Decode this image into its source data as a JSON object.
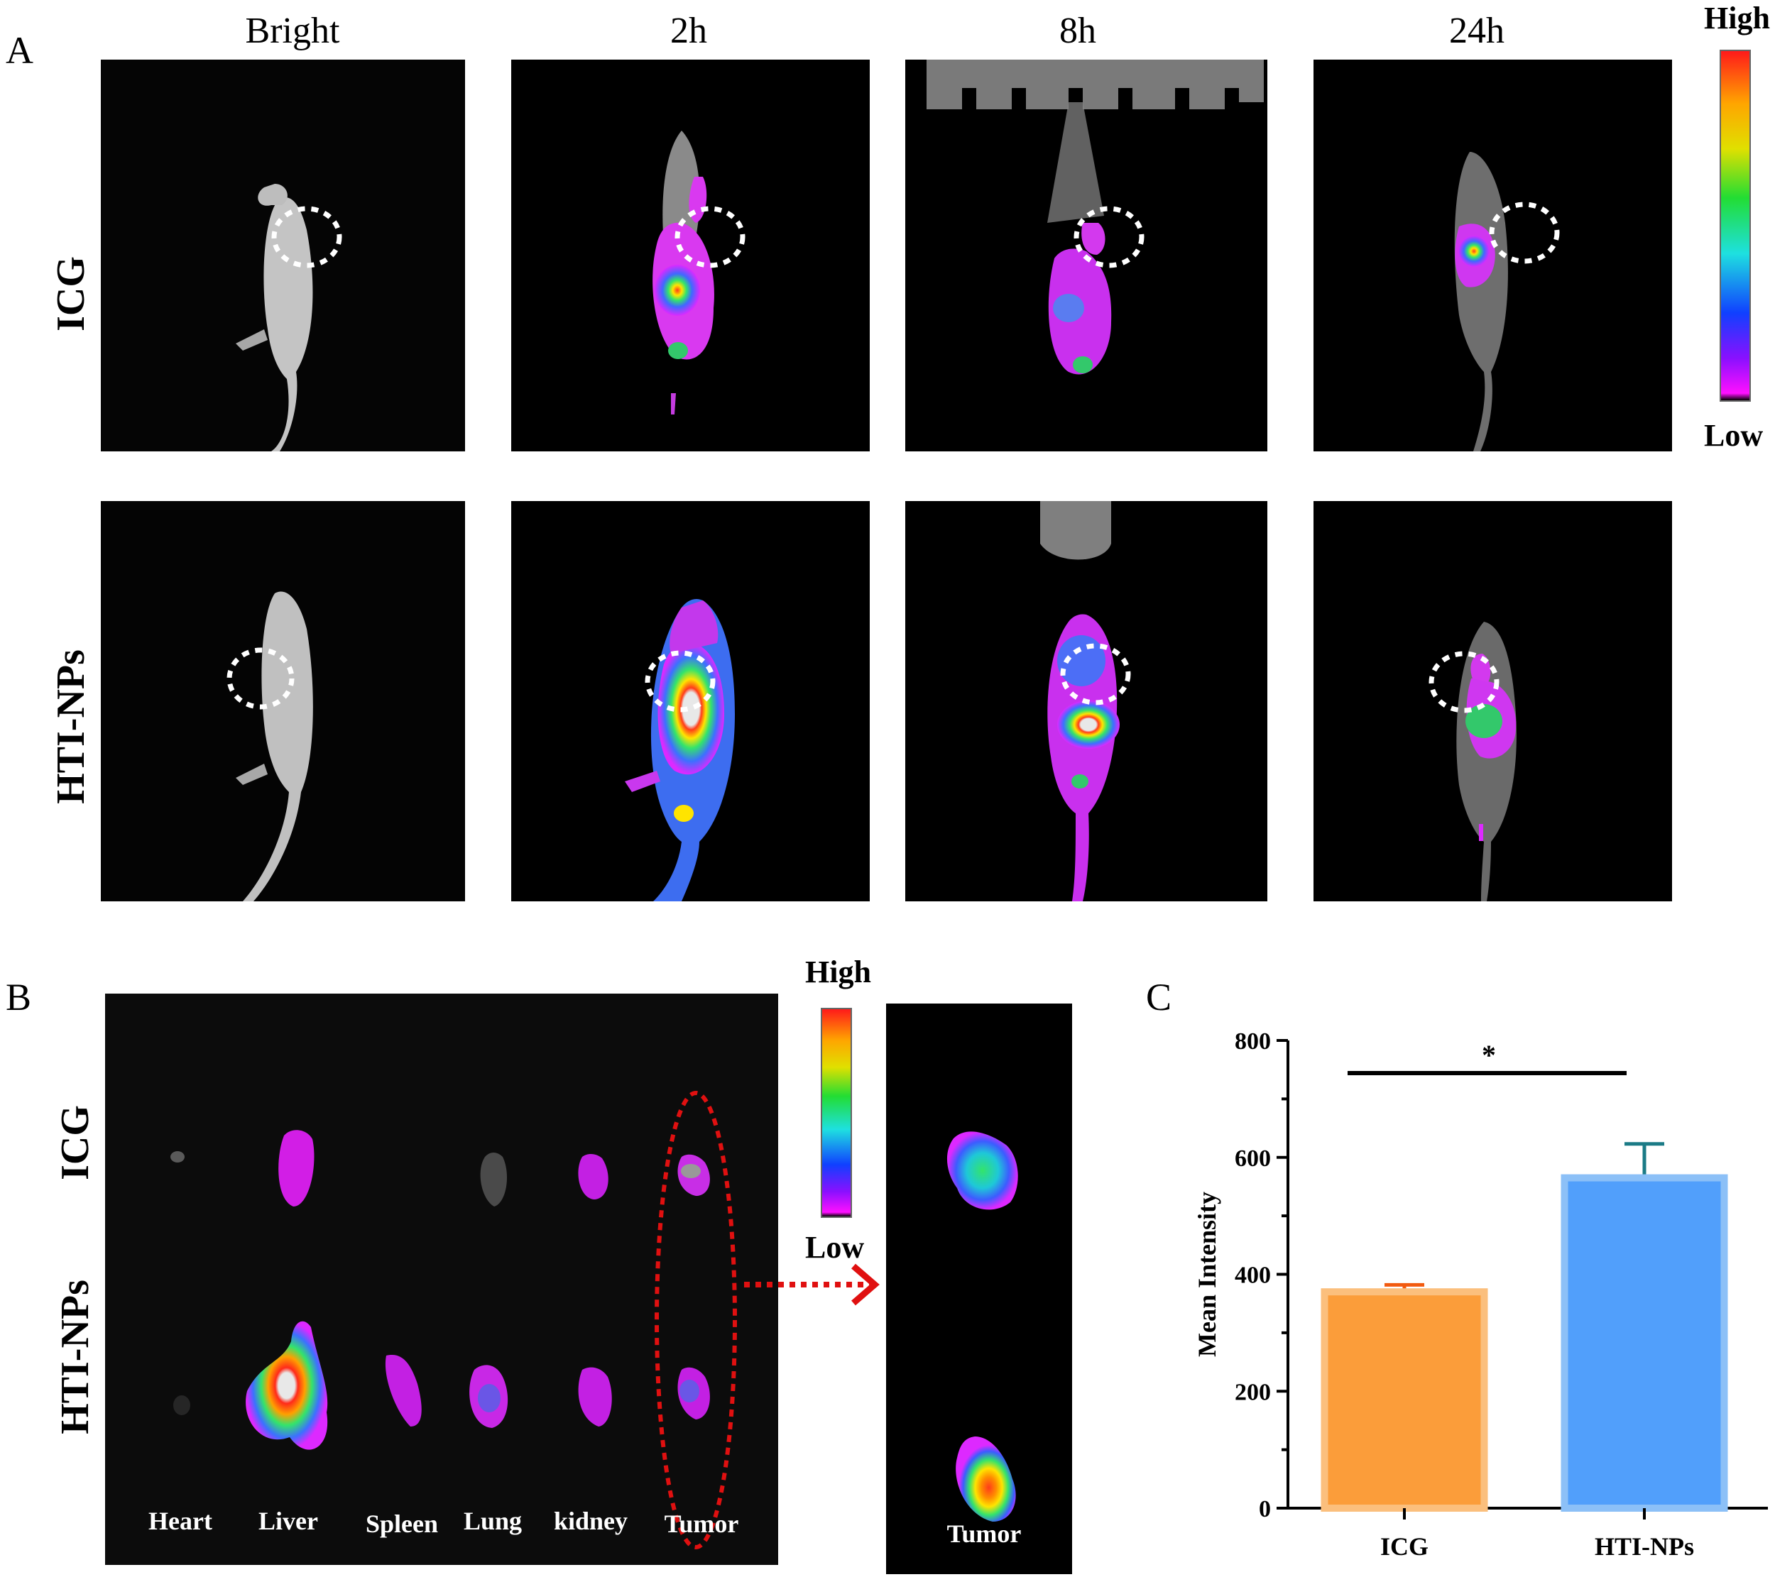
{
  "panelA": {
    "letter": "A",
    "columns": [
      "Bright",
      "2h",
      "8h",
      "24h"
    ],
    "rows": [
      "ICG",
      "HTI-NPs"
    ],
    "scale": {
      "high": "High",
      "low": "Low"
    }
  },
  "panelB": {
    "letter": "B",
    "rows": [
      "ICG",
      "HTI-NPs"
    ],
    "organs": [
      "Heart",
      "Liver",
      "Spleen",
      "Lung",
      "kidney",
      "Tumor"
    ],
    "zoom_label": "Tumor",
    "scale": {
      "high": "High",
      "low": "Low"
    }
  },
  "panelC": {
    "letter": "C",
    "significance": "*"
  },
  "chart_data": {
    "type": "bar",
    "categories": [
      "ICG",
      "HTI-NPs"
    ],
    "values": [
      370,
      565
    ],
    "errors": [
      12,
      58
    ],
    "ylabel": "Mean Intensity",
    "xlabel": "",
    "ylim": [
      0,
      800
    ],
    "yticks": [
      0,
      200,
      400,
      600,
      800
    ],
    "colors": [
      "#fb9d3a",
      "#519ffb"
    ],
    "edge_colors": [
      "#fbbf7d",
      "#8cc0f7"
    ],
    "error_colors": [
      "#f25a0f",
      "#1b7b86"
    ]
  }
}
